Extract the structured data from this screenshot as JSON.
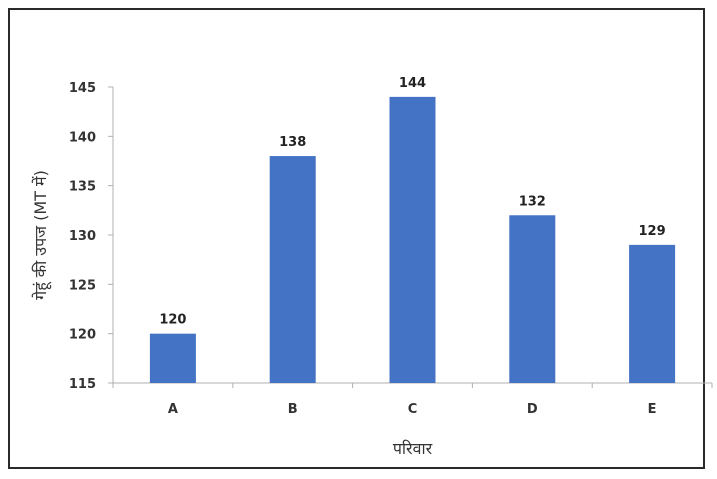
{
  "chart_data": {
    "type": "bar",
    "categories": [
      "A",
      "B",
      "C",
      "D",
      "E"
    ],
    "values": [
      120,
      138,
      144,
      132,
      129
    ],
    "data_labels": [
      "120",
      "138",
      "144",
      "132",
      "129"
    ],
    "title": "",
    "xlabel": "परिवार",
    "ylabel": "गेहूं की उपज (MT में)",
    "ylim": [
      115,
      145
    ],
    "yticks": [
      115,
      120,
      125,
      130,
      135,
      140,
      145
    ],
    "ytick_labels": [
      "115",
      "120",
      "125",
      "130",
      "135",
      "140",
      "145"
    ],
    "grid": false,
    "legend": "none",
    "bar_color": "#4472C4"
  }
}
